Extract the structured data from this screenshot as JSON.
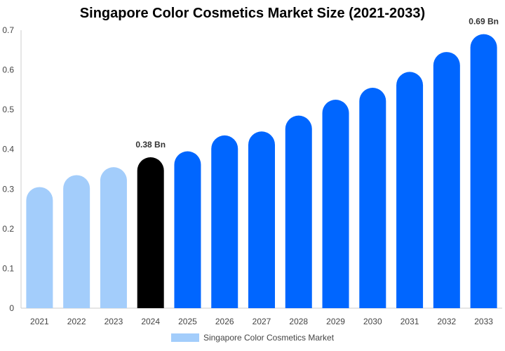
{
  "chart_data": {
    "type": "bar",
    "title": "Singapore Color Cosmetics Market Size (2021-2033)",
    "categories": [
      "2021",
      "2022",
      "2023",
      "2024",
      "2025",
      "2026",
      "2027",
      "2028",
      "2029",
      "2030",
      "2031",
      "2032",
      "2033"
    ],
    "series": [
      {
        "name": "Singapore Color Cosmetics Market",
        "values": [
          0.305,
          0.335,
          0.355,
          0.38,
          0.395,
          0.435,
          0.445,
          0.485,
          0.525,
          0.555,
          0.595,
          0.645,
          0.69
        ]
      }
    ],
    "data_labels": [
      {
        "category": "2024",
        "text": "0.38 Bn"
      },
      {
        "category": "2033",
        "text": "0.69 Bn"
      }
    ],
    "ylim": [
      0,
      0.7
    ],
    "yticks": [
      "0",
      "0.1",
      "0.2",
      "0.3",
      "0.4",
      "0.5",
      "0.6",
      "0.7"
    ],
    "xlabel": "",
    "ylabel": "",
    "grid": false,
    "legend_position": "bottom",
    "colors": {
      "historic": "#a3cdfb",
      "current": "#000000",
      "forecast": "#0066ff",
      "legend": "#a3cdfb",
      "axis": "#cccccc"
    }
  }
}
